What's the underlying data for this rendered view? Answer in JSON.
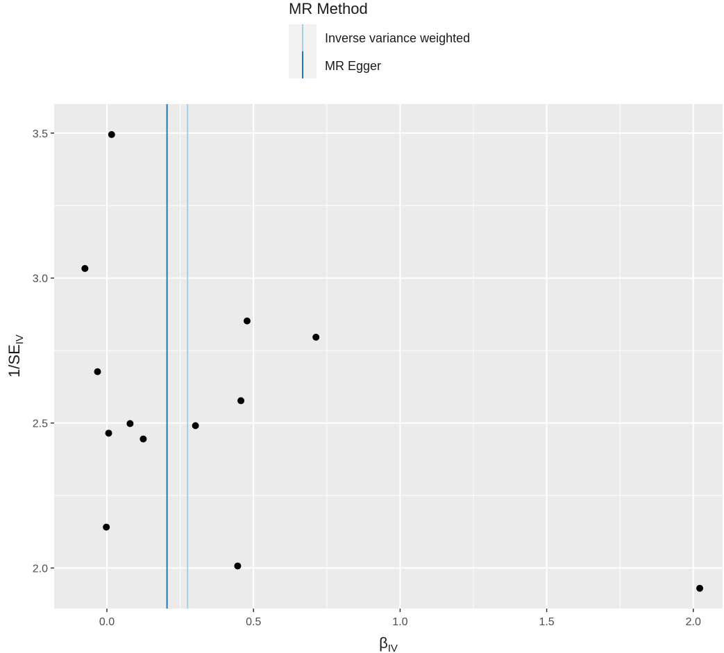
{
  "chart_data": {
    "type": "scatter",
    "title": "",
    "xlabel": "β",
    "xlabel_sub": "IV",
    "ylabel": "1/SE",
    "ylabel_sub": "IV",
    "xlim": [
      -0.18,
      2.1
    ],
    "ylim": [
      1.86,
      3.6
    ],
    "x_ticks": [
      0.0,
      0.5,
      1.0,
      1.5,
      2.0
    ],
    "x_tick_labels": [
      "0.0",
      "0.5",
      "1.0",
      "1.5",
      "2.0"
    ],
    "y_ticks": [
      2.0,
      2.5,
      3.0,
      3.5
    ],
    "y_tick_labels": [
      "2.0",
      "2.5",
      "3.0",
      "3.5"
    ],
    "grid": true,
    "legend": {
      "title": "MR Method",
      "position": "top",
      "entries": [
        {
          "label": "Inverse variance weighted",
          "color": "#a6cee3"
        },
        {
          "label": "MR Egger",
          "color": "#1f78b4"
        }
      ]
    },
    "reference_lines": [
      {
        "method": "Inverse variance weighted",
        "x": 0.275,
        "color": "#a6cee3"
      },
      {
        "method": "MR Egger",
        "x": 0.205,
        "color": "#1f78b4"
      }
    ],
    "points": [
      {
        "x": 0.016,
        "y": 3.495
      },
      {
        "x": -0.075,
        "y": 3.033
      },
      {
        "x": 0.478,
        "y": 2.852
      },
      {
        "x": 0.713,
        "y": 2.796
      },
      {
        "x": -0.032,
        "y": 2.677
      },
      {
        "x": 0.457,
        "y": 2.577
      },
      {
        "x": 0.079,
        "y": 2.498
      },
      {
        "x": 0.302,
        "y": 2.491
      },
      {
        "x": 0.006,
        "y": 2.465
      },
      {
        "x": 0.124,
        "y": 2.445
      },
      {
        "x": -0.002,
        "y": 2.141
      },
      {
        "x": 0.446,
        "y": 2.007
      },
      {
        "x": 2.022,
        "y": 1.93
      }
    ],
    "colors": {
      "panel": "#ebebeb",
      "grid": "#ffffff",
      "point": "#000000"
    }
  }
}
